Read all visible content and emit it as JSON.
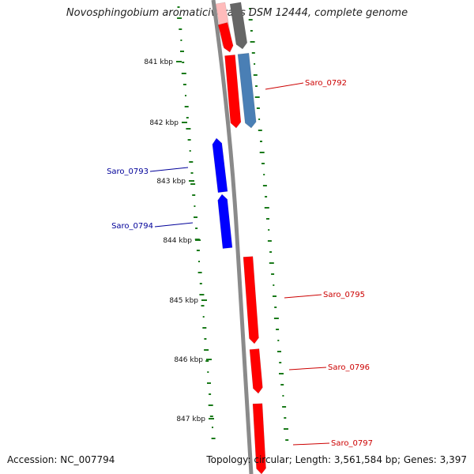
{
  "title": "Novosphingobium aromaticivorans DSM 12444, complete genome",
  "footer": {
    "accession": "Accession: NC_007794",
    "topology": "Topology: circular; Length: 3,561,584 bp; Genes: 3,397"
  },
  "colors": {
    "backbone": "#8a8a8a",
    "forward_gene": "#ff0000",
    "reverse_gene": "#0000ff",
    "gray_gene": "#666666",
    "steel_gene": "#4a7fb5",
    "gc_marks": "#1a7a1a",
    "forward_label": "#cc0000",
    "reverse_label": "#000099"
  },
  "ticks": [
    {
      "label": "841 kbp"
    },
    {
      "label": "842 kbp"
    },
    {
      "label": "843 kbp"
    },
    {
      "label": "844 kbp"
    },
    {
      "label": "845 kbp"
    },
    {
      "label": "846 kbp"
    },
    {
      "label": "847 kbp"
    }
  ],
  "genes": [
    {
      "label": "Saro_0792",
      "strand": "forward"
    },
    {
      "label": "Saro_0793",
      "strand": "reverse"
    },
    {
      "label": "Saro_0794",
      "strand": "reverse"
    },
    {
      "label": "Saro_0795",
      "strand": "forward"
    },
    {
      "label": "Saro_0796",
      "strand": "forward"
    },
    {
      "label": "Saro_0797",
      "strand": "forward"
    }
  ]
}
